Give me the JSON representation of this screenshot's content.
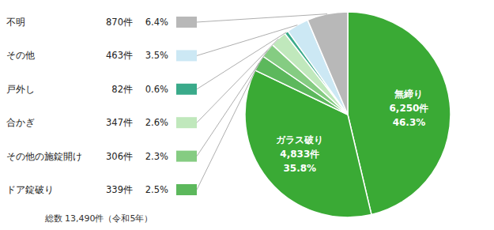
{
  "chart_data": {
    "type": "pie",
    "categories": [
      "無締り",
      "ガラス破り",
      "ドア錠破り",
      "その他の施錠開け",
      "合かぎ",
      "戸外し",
      "その他",
      "不明"
    ],
    "values": [
      46.3,
      35.8,
      2.5,
      2.3,
      2.6,
      0.6,
      3.5,
      6.4
    ],
    "value_labels": [
      "46.3%",
      "35.8%",
      "2.5%",
      "2.3%",
      "2.6%",
      "0.6%",
      "3.5%",
      "6.4%"
    ],
    "counts": [
      6250,
      4833,
      339,
      306,
      347,
      82,
      463,
      870
    ],
    "count_labels": [
      "6,250件",
      "4,833件",
      "339件",
      "306件",
      "347件",
      "82件",
      "463件",
      "870件"
    ],
    "colors": [
      "#3aaa35",
      "#3aaa35",
      "#5cb85c",
      "#85cc82",
      "#c0e8bc",
      "#3aaa8a",
      "#cce8f4",
      "#b8b8b8"
    ],
    "data_labels": true,
    "legend": "left",
    "annotations": [
      "総数 13,490件（令和5年）"
    ]
  }
}
